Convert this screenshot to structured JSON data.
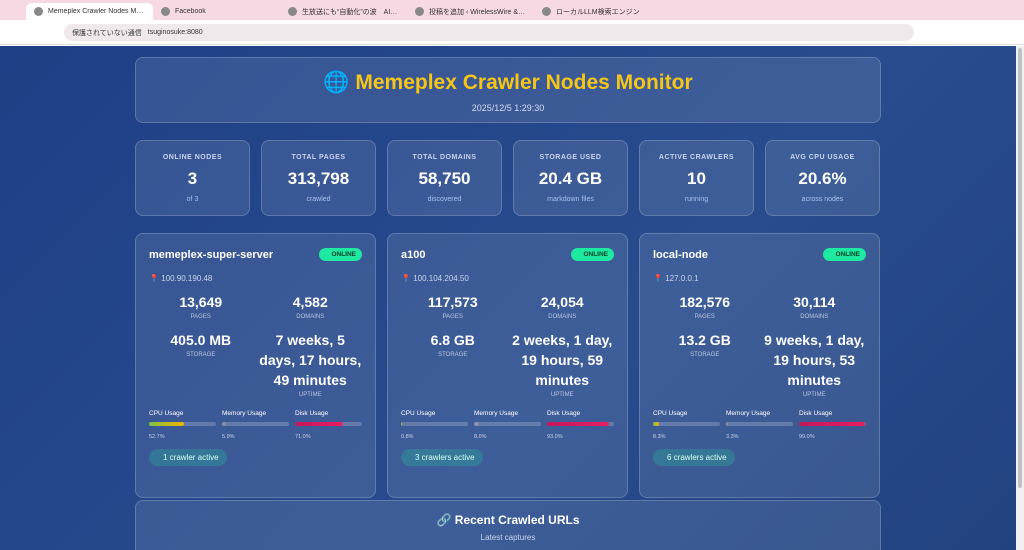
{
  "browser": {
    "tabs": [
      "Memeplex Crawler Nodes Monitor",
      "Facebook",
      "生放送にも“自動化”の波　AIカメラ",
      "投稿を追加 ‹ WirelessWire & Smart",
      "ローカルLLM検索エンジン"
    ],
    "security": "保護されていない通信",
    "url": "tsuginosuke:8080"
  },
  "header": {
    "icon": "🌐",
    "title": "Memeplex Crawler Nodes Monitor",
    "timestamp": "2025/12/5 1:29:30"
  },
  "stats": [
    {
      "label": "ONLINE NODES",
      "value": "3",
      "sub": "of 3"
    },
    {
      "label": "TOTAL PAGES",
      "value": "313,798",
      "sub": "crawled"
    },
    {
      "label": "TOTAL DOMAINS",
      "value": "58,750",
      "sub": "discovered"
    },
    {
      "label": "STORAGE USED",
      "value": "20.4 GB",
      "sub": "markdown files"
    },
    {
      "label": "ACTIVE CRAWLERS",
      "value": "10",
      "sub": "running"
    },
    {
      "label": "AVG CPU USAGE",
      "value": "20.6%",
      "sub": "across nodes"
    }
  ],
  "nodes": [
    {
      "name": "memeplex-super-server",
      "status": "ONLINE",
      "ip": "100.90.190.48",
      "metrics": [
        {
          "value": "13,649",
          "label": "PAGES"
        },
        {
          "value": "4,582",
          "label": "DOMAINS"
        },
        {
          "value": "405.0 MB",
          "label": "STORAGE"
        },
        {
          "value": "7 weeks, 5 days, 17 hours, 49 minutes",
          "label": "UPTIME"
        }
      ],
      "usage": [
        {
          "name": "CPU Usage",
          "value": 52.7,
          "label": "52.7%"
        },
        {
          "name": "Memory Usage",
          "value": 5.9,
          "label": "5.9%"
        },
        {
          "name": "Disk Usage",
          "value": 71.0,
          "label": "71.0%"
        }
      ],
      "crawlers": "1 crawler active"
    },
    {
      "name": "a100",
      "status": "ONLINE",
      "ip": "100.104.204.50",
      "metrics": [
        {
          "value": "117,573",
          "label": "PAGES"
        },
        {
          "value": "24,054",
          "label": "DOMAINS"
        },
        {
          "value": "6.8 GB",
          "label": "STORAGE"
        },
        {
          "value": "2 weeks, 1 day, 19 hours, 59 minutes",
          "label": "UPTIME"
        }
      ],
      "usage": [
        {
          "name": "CPU Usage",
          "value": 0.8,
          "label": "0.8%"
        },
        {
          "name": "Memory Usage",
          "value": 8.0,
          "label": "8.0%"
        },
        {
          "name": "Disk Usage",
          "value": 93.0,
          "label": "93.0%"
        }
      ],
      "crawlers": "3 crawlers active"
    },
    {
      "name": "local-node",
      "status": "ONLINE",
      "ip": "127.0.0.1",
      "metrics": [
        {
          "value": "182,576",
          "label": "PAGES"
        },
        {
          "value": "30,114",
          "label": "DOMAINS"
        },
        {
          "value": "13.2 GB",
          "label": "STORAGE"
        },
        {
          "value": "9 weeks, 1 day, 19 hours, 53 minutes",
          "label": "UPTIME"
        }
      ],
      "usage": [
        {
          "name": "CPU Usage",
          "value": 8.3,
          "label": "8.3%"
        },
        {
          "name": "Memory Usage",
          "value": 3.3,
          "label": "3.3%"
        },
        {
          "name": "Disk Usage",
          "value": 99.0,
          "label": "99.0%"
        }
      ],
      "crawlers": "6 crawlers active"
    }
  ],
  "recent": {
    "icon": "🔗",
    "title": "Recent Crawled URLs",
    "subtitle": "Latest captures"
  }
}
